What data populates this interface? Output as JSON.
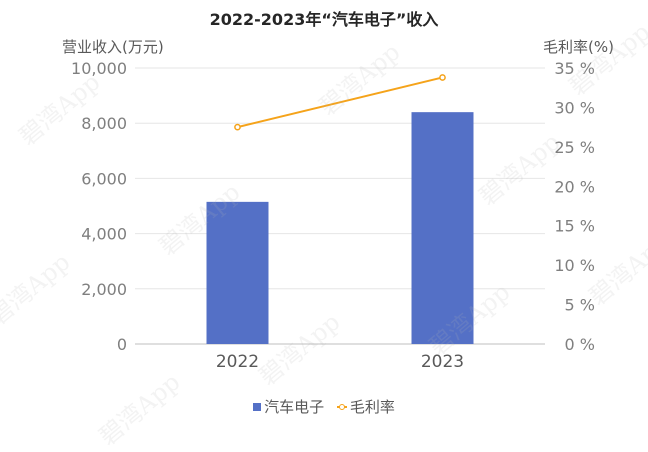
{
  "chart_data": {
    "type": "bar",
    "title": "2022-2023年“汽车电子”收入",
    "categories": [
      "2022",
      "2023"
    ],
    "y_left": {
      "label": "营业收入(万元)",
      "range": [
        0,
        10000
      ],
      "ticks": [
        "0",
        "2,000",
        "4,000",
        "6,000",
        "8,000",
        "10,000"
      ]
    },
    "y_right": {
      "label": "毛利率(%)",
      "range": [
        0,
        35
      ],
      "ticks": [
        "0 %",
        "5 %",
        "10 %",
        "15 %",
        "20 %",
        "25 %",
        "30 %",
        "35 %"
      ]
    },
    "series": [
      {
        "name": "汽车电子",
        "type": "bar",
        "axis": "left",
        "values": [
          5150,
          8400
        ],
        "color": "#5470c6"
      },
      {
        "name": "毛利率",
        "type": "line",
        "axis": "right",
        "values": [
          27.5,
          33.8
        ],
        "color": "#f5a31a"
      }
    ],
    "legend_position": "bottom",
    "grid": true
  },
  "watermark": "碧湾App"
}
